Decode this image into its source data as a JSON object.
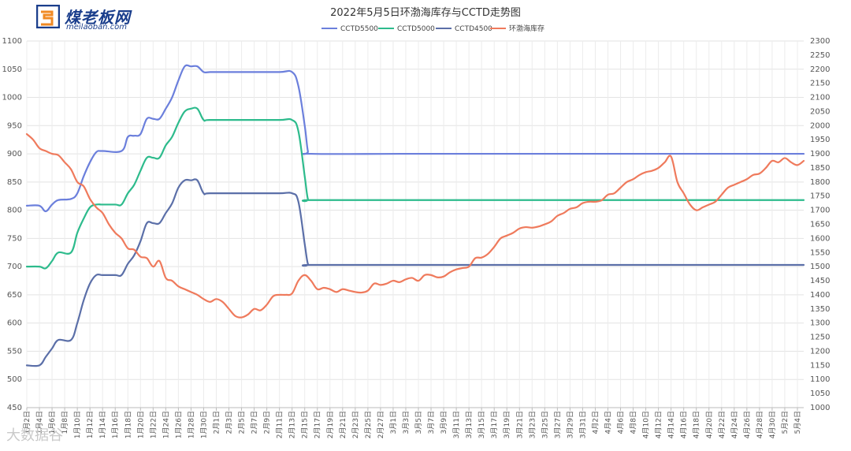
{
  "brand": {
    "logo_text": "煤老板网",
    "logo_sub": "meilaoban.com",
    "watermark": "大数据谷"
  },
  "chart_data": {
    "type": "line",
    "title": "2022年5月5日环渤海库存与CCTD走势图",
    "legend_position": "top-center",
    "grid": true,
    "ylim_left": [
      450,
      1100
    ],
    "yticks_left": [
      450,
      500,
      550,
      600,
      650,
      700,
      750,
      800,
      850,
      900,
      950,
      1000,
      1050,
      1100
    ],
    "ylim_right": [
      1000,
      2300
    ],
    "yticks_right": [
      1000,
      1050,
      1100,
      1150,
      1200,
      1250,
      1300,
      1350,
      1400,
      1450,
      1500,
      1550,
      1600,
      1650,
      1700,
      1750,
      1800,
      1850,
      1900,
      1950,
      2000,
      2050,
      2100,
      2150,
      2200,
      2250,
      2300
    ],
    "xlim": [
      0,
      123
    ],
    "x_ticks": [
      {
        "day": 0,
        "label": "1月2日"
      },
      {
        "day": 2,
        "label": "1月4日"
      },
      {
        "day": 4,
        "label": "1月6日"
      },
      {
        "day": 6,
        "label": "1月8日"
      },
      {
        "day": 8,
        "label": "1月10日"
      },
      {
        "day": 10,
        "label": "1月12日"
      },
      {
        "day": 12,
        "label": "1月14日"
      },
      {
        "day": 14,
        "label": "1月16日"
      },
      {
        "day": 16,
        "label": "1月18日"
      },
      {
        "day": 18,
        "label": "1月20日"
      },
      {
        "day": 20,
        "label": "1月22日"
      },
      {
        "day": 22,
        "label": "1月24日"
      },
      {
        "day": 24,
        "label": "1月26日"
      },
      {
        "day": 26,
        "label": "1月28日"
      },
      {
        "day": 28,
        "label": "1月30日"
      },
      {
        "day": 30,
        "label": "2月1日"
      },
      {
        "day": 32,
        "label": "2月3日"
      },
      {
        "day": 34,
        "label": "2月5日"
      },
      {
        "day": 36,
        "label": "2月7日"
      },
      {
        "day": 38,
        "label": "2月9日"
      },
      {
        "day": 40,
        "label": "2月11日"
      },
      {
        "day": 42,
        "label": "2月13日"
      },
      {
        "day": 44,
        "label": "2月15日"
      },
      {
        "day": 46,
        "label": "2月17日"
      },
      {
        "day": 48,
        "label": "2月19日"
      },
      {
        "day": 50,
        "label": "2月21日"
      },
      {
        "day": 52,
        "label": "2月23日"
      },
      {
        "day": 54,
        "label": "2月25日"
      },
      {
        "day": 56,
        "label": "2月27日"
      },
      {
        "day": 58,
        "label": "3月1日"
      },
      {
        "day": 60,
        "label": "3月3日"
      },
      {
        "day": 62,
        "label": "3月5日"
      },
      {
        "day": 64,
        "label": "3月7日"
      },
      {
        "day": 66,
        "label": "3月9日"
      },
      {
        "day": 68,
        "label": "3月11日"
      },
      {
        "day": 70,
        "label": "3月13日"
      },
      {
        "day": 72,
        "label": "3月15日"
      },
      {
        "day": 74,
        "label": "3月17日"
      },
      {
        "day": 76,
        "label": "3月19日"
      },
      {
        "day": 78,
        "label": "3月21日"
      },
      {
        "day": 80,
        "label": "3月23日"
      },
      {
        "day": 82,
        "label": "3月25日"
      },
      {
        "day": 84,
        "label": "3月27日"
      },
      {
        "day": 86,
        "label": "3月29日"
      },
      {
        "day": 88,
        "label": "3月31日"
      },
      {
        "day": 90,
        "label": "4月2日"
      },
      {
        "day": 92,
        "label": "4月4日"
      },
      {
        "day": 94,
        "label": "4月6日"
      },
      {
        "day": 96,
        "label": "4月8日"
      },
      {
        "day": 98,
        "label": "4月10日"
      },
      {
        "day": 100,
        "label": "4月12日"
      },
      {
        "day": 102,
        "label": "4月14日"
      },
      {
        "day": 104,
        "label": "4月16日"
      },
      {
        "day": 106,
        "label": "4月18日"
      },
      {
        "day": 108,
        "label": "4月20日"
      },
      {
        "day": 110,
        "label": "4月22日"
      },
      {
        "day": 112,
        "label": "4月24日"
      },
      {
        "day": 114,
        "label": "4月26日"
      },
      {
        "day": 116,
        "label": "4月28日"
      },
      {
        "day": 118,
        "label": "4月30日"
      },
      {
        "day": 120,
        "label": "5月2日"
      },
      {
        "day": 122,
        "label": "5月4日"
      }
    ],
    "series": [
      {
        "name": "CCTD5500",
        "axis": "left",
        "color": "#6b7fdc",
        "points": [
          [
            0,
            808
          ],
          [
            2,
            808
          ],
          [
            3,
            798
          ],
          [
            4,
            810
          ],
          [
            5,
            818
          ],
          [
            7,
            820
          ],
          [
            8,
            830
          ],
          [
            9,
            860
          ],
          [
            10,
            885
          ],
          [
            11,
            903
          ],
          [
            12,
            905
          ],
          [
            15,
            905
          ],
          [
            16,
            930
          ],
          [
            17,
            932
          ],
          [
            18,
            935
          ],
          [
            19,
            962
          ],
          [
            20,
            962
          ],
          [
            21,
            962
          ],
          [
            22,
            980
          ],
          [
            23,
            1000
          ],
          [
            24,
            1030
          ],
          [
            25,
            1055
          ],
          [
            26,
            1055
          ],
          [
            27,
            1055
          ],
          [
            28,
            1045
          ],
          [
            29,
            1045
          ],
          [
            30,
            1045
          ],
          [
            35,
            1045
          ],
          [
            40,
            1045
          ],
          [
            42,
            1045
          ],
          [
            43,
            1020
          ],
          [
            44,
            950
          ],
          [
            44.5,
            905
          ],
          [
            45,
            900
          ],
          [
            60,
            900
          ],
          [
            80,
            900
          ],
          [
            100,
            900
          ],
          [
            123,
            900
          ]
        ]
      },
      {
        "name": "CCTD5000",
        "axis": "left",
        "color": "#2dbb8c",
        "points": [
          [
            0,
            700
          ],
          [
            2,
            700
          ],
          [
            3,
            697
          ],
          [
            4,
            710
          ],
          [
            5,
            725
          ],
          [
            7,
            725
          ],
          [
            8,
            760
          ],
          [
            9,
            785
          ],
          [
            10,
            805
          ],
          [
            11,
            810
          ],
          [
            12,
            810
          ],
          [
            14,
            810
          ],
          [
            15,
            810
          ],
          [
            16,
            830
          ],
          [
            17,
            845
          ],
          [
            18,
            870
          ],
          [
            19,
            893
          ],
          [
            20,
            893
          ],
          [
            21,
            893
          ],
          [
            22,
            915
          ],
          [
            23,
            930
          ],
          [
            24,
            955
          ],
          [
            25,
            975
          ],
          [
            26,
            980
          ],
          [
            27,
            980
          ],
          [
            28,
            960
          ],
          [
            29,
            960
          ],
          [
            35,
            960
          ],
          [
            40,
            960
          ],
          [
            42,
            960
          ],
          [
            43,
            940
          ],
          [
            44,
            860
          ],
          [
            44.5,
            820
          ],
          [
            45,
            818
          ],
          [
            60,
            818
          ],
          [
            80,
            818
          ],
          [
            100,
            818
          ],
          [
            123,
            818
          ]
        ]
      },
      {
        "name": "CCTD4500",
        "axis": "left",
        "color": "#5b6fa8",
        "points": [
          [
            0,
            525
          ],
          [
            2,
            525
          ],
          [
            3,
            540
          ],
          [
            4,
            555
          ],
          [
            5,
            570
          ],
          [
            7,
            570
          ],
          [
            8,
            600
          ],
          [
            9,
            640
          ],
          [
            10,
            670
          ],
          [
            11,
            685
          ],
          [
            12,
            685
          ],
          [
            14,
            685
          ],
          [
            15,
            685
          ],
          [
            16,
            705
          ],
          [
            17,
            720
          ],
          [
            18,
            745
          ],
          [
            19,
            777
          ],
          [
            20,
            777
          ],
          [
            21,
            777
          ],
          [
            22,
            795
          ],
          [
            23,
            812
          ],
          [
            24,
            840
          ],
          [
            25,
            853
          ],
          [
            26,
            853
          ],
          [
            27,
            853
          ],
          [
            28,
            830
          ],
          [
            29,
            830
          ],
          [
            35,
            830
          ],
          [
            40,
            830
          ],
          [
            42,
            830
          ],
          [
            43,
            815
          ],
          [
            44,
            740
          ],
          [
            44.5,
            705
          ],
          [
            45,
            703
          ],
          [
            60,
            703
          ],
          [
            80,
            703
          ],
          [
            100,
            703
          ],
          [
            123,
            703
          ]
        ]
      },
      {
        "name": "环渤海库存",
        "axis": "right",
        "color": "#ef7a5c",
        "points": [
          [
            0,
            1970
          ],
          [
            1,
            1950
          ],
          [
            2,
            1920
          ],
          [
            3,
            1910
          ],
          [
            4,
            1900
          ],
          [
            5,
            1895
          ],
          [
            6,
            1870
          ],
          [
            7,
            1845
          ],
          [
            8,
            1800
          ],
          [
            9,
            1785
          ],
          [
            10,
            1740
          ],
          [
            11,
            1710
          ],
          [
            12,
            1690
          ],
          [
            13,
            1650
          ],
          [
            14,
            1620
          ],
          [
            15,
            1600
          ],
          [
            16,
            1565
          ],
          [
            17,
            1560
          ],
          [
            18,
            1535
          ],
          [
            19,
            1530
          ],
          [
            20,
            1500
          ],
          [
            21,
            1520
          ],
          [
            22,
            1460
          ],
          [
            23,
            1450
          ],
          [
            24,
            1430
          ],
          [
            25,
            1420
          ],
          [
            26,
            1410
          ],
          [
            27,
            1400
          ],
          [
            28,
            1385
          ],
          [
            29,
            1375
          ],
          [
            30,
            1385
          ],
          [
            31,
            1375
          ],
          [
            32,
            1350
          ],
          [
            33,
            1325
          ],
          [
            34,
            1320
          ],
          [
            35,
            1330
          ],
          [
            36,
            1350
          ],
          [
            37,
            1345
          ],
          [
            38,
            1365
          ],
          [
            39,
            1395
          ],
          [
            40,
            1400
          ],
          [
            41,
            1400
          ],
          [
            42,
            1405
          ],
          [
            43,
            1450
          ],
          [
            44,
            1470
          ],
          [
            45,
            1450
          ],
          [
            46,
            1420
          ],
          [
            47,
            1425
          ],
          [
            48,
            1420
          ],
          [
            49,
            1410
          ],
          [
            50,
            1420
          ],
          [
            51,
            1415
          ],
          [
            52,
            1410
          ],
          [
            53,
            1408
          ],
          [
            54,
            1415
          ],
          [
            55,
            1440
          ],
          [
            56,
            1435
          ],
          [
            57,
            1440
          ],
          [
            58,
            1450
          ],
          [
            59,
            1445
          ],
          [
            60,
            1455
          ],
          [
            61,
            1460
          ],
          [
            62,
            1450
          ],
          [
            63,
            1470
          ],
          [
            64,
            1470
          ],
          [
            65,
            1462
          ],
          [
            66,
            1465
          ],
          [
            67,
            1480
          ],
          [
            68,
            1490
          ],
          [
            69,
            1495
          ],
          [
            70,
            1500
          ],
          [
            71,
            1530
          ],
          [
            72,
            1532
          ],
          [
            73,
            1545
          ],
          [
            74,
            1570
          ],
          [
            75,
            1600
          ],
          [
            76,
            1610
          ],
          [
            77,
            1620
          ],
          [
            78,
            1635
          ],
          [
            79,
            1640
          ],
          [
            80,
            1638
          ],
          [
            81,
            1642
          ],
          [
            82,
            1650
          ],
          [
            83,
            1660
          ],
          [
            84,
            1680
          ],
          [
            85,
            1690
          ],
          [
            86,
            1705
          ],
          [
            87,
            1710
          ],
          [
            88,
            1725
          ],
          [
            89,
            1730
          ],
          [
            90,
            1730
          ],
          [
            91,
            1735
          ],
          [
            92,
            1755
          ],
          [
            93,
            1760
          ],
          [
            94,
            1780
          ],
          [
            95,
            1800
          ],
          [
            96,
            1810
          ],
          [
            97,
            1825
          ],
          [
            98,
            1835
          ],
          [
            99,
            1840
          ],
          [
            100,
            1850
          ],
          [
            101,
            1870
          ],
          [
            102,
            1890
          ],
          [
            103,
            1800
          ],
          [
            104,
            1760
          ],
          [
            105,
            1720
          ],
          [
            106,
            1700
          ],
          [
            107,
            1710
          ],
          [
            108,
            1720
          ],
          [
            109,
            1730
          ],
          [
            110,
            1755
          ],
          [
            111,
            1780
          ],
          [
            112,
            1790
          ],
          [
            113,
            1800
          ],
          [
            114,
            1810
          ],
          [
            115,
            1825
          ],
          [
            116,
            1830
          ],
          [
            117,
            1850
          ],
          [
            118,
            1875
          ],
          [
            119,
            1870
          ],
          [
            120,
            1885
          ],
          [
            121,
            1870
          ],
          [
            122,
            1860
          ],
          [
            123,
            1875
          ]
        ]
      }
    ]
  }
}
